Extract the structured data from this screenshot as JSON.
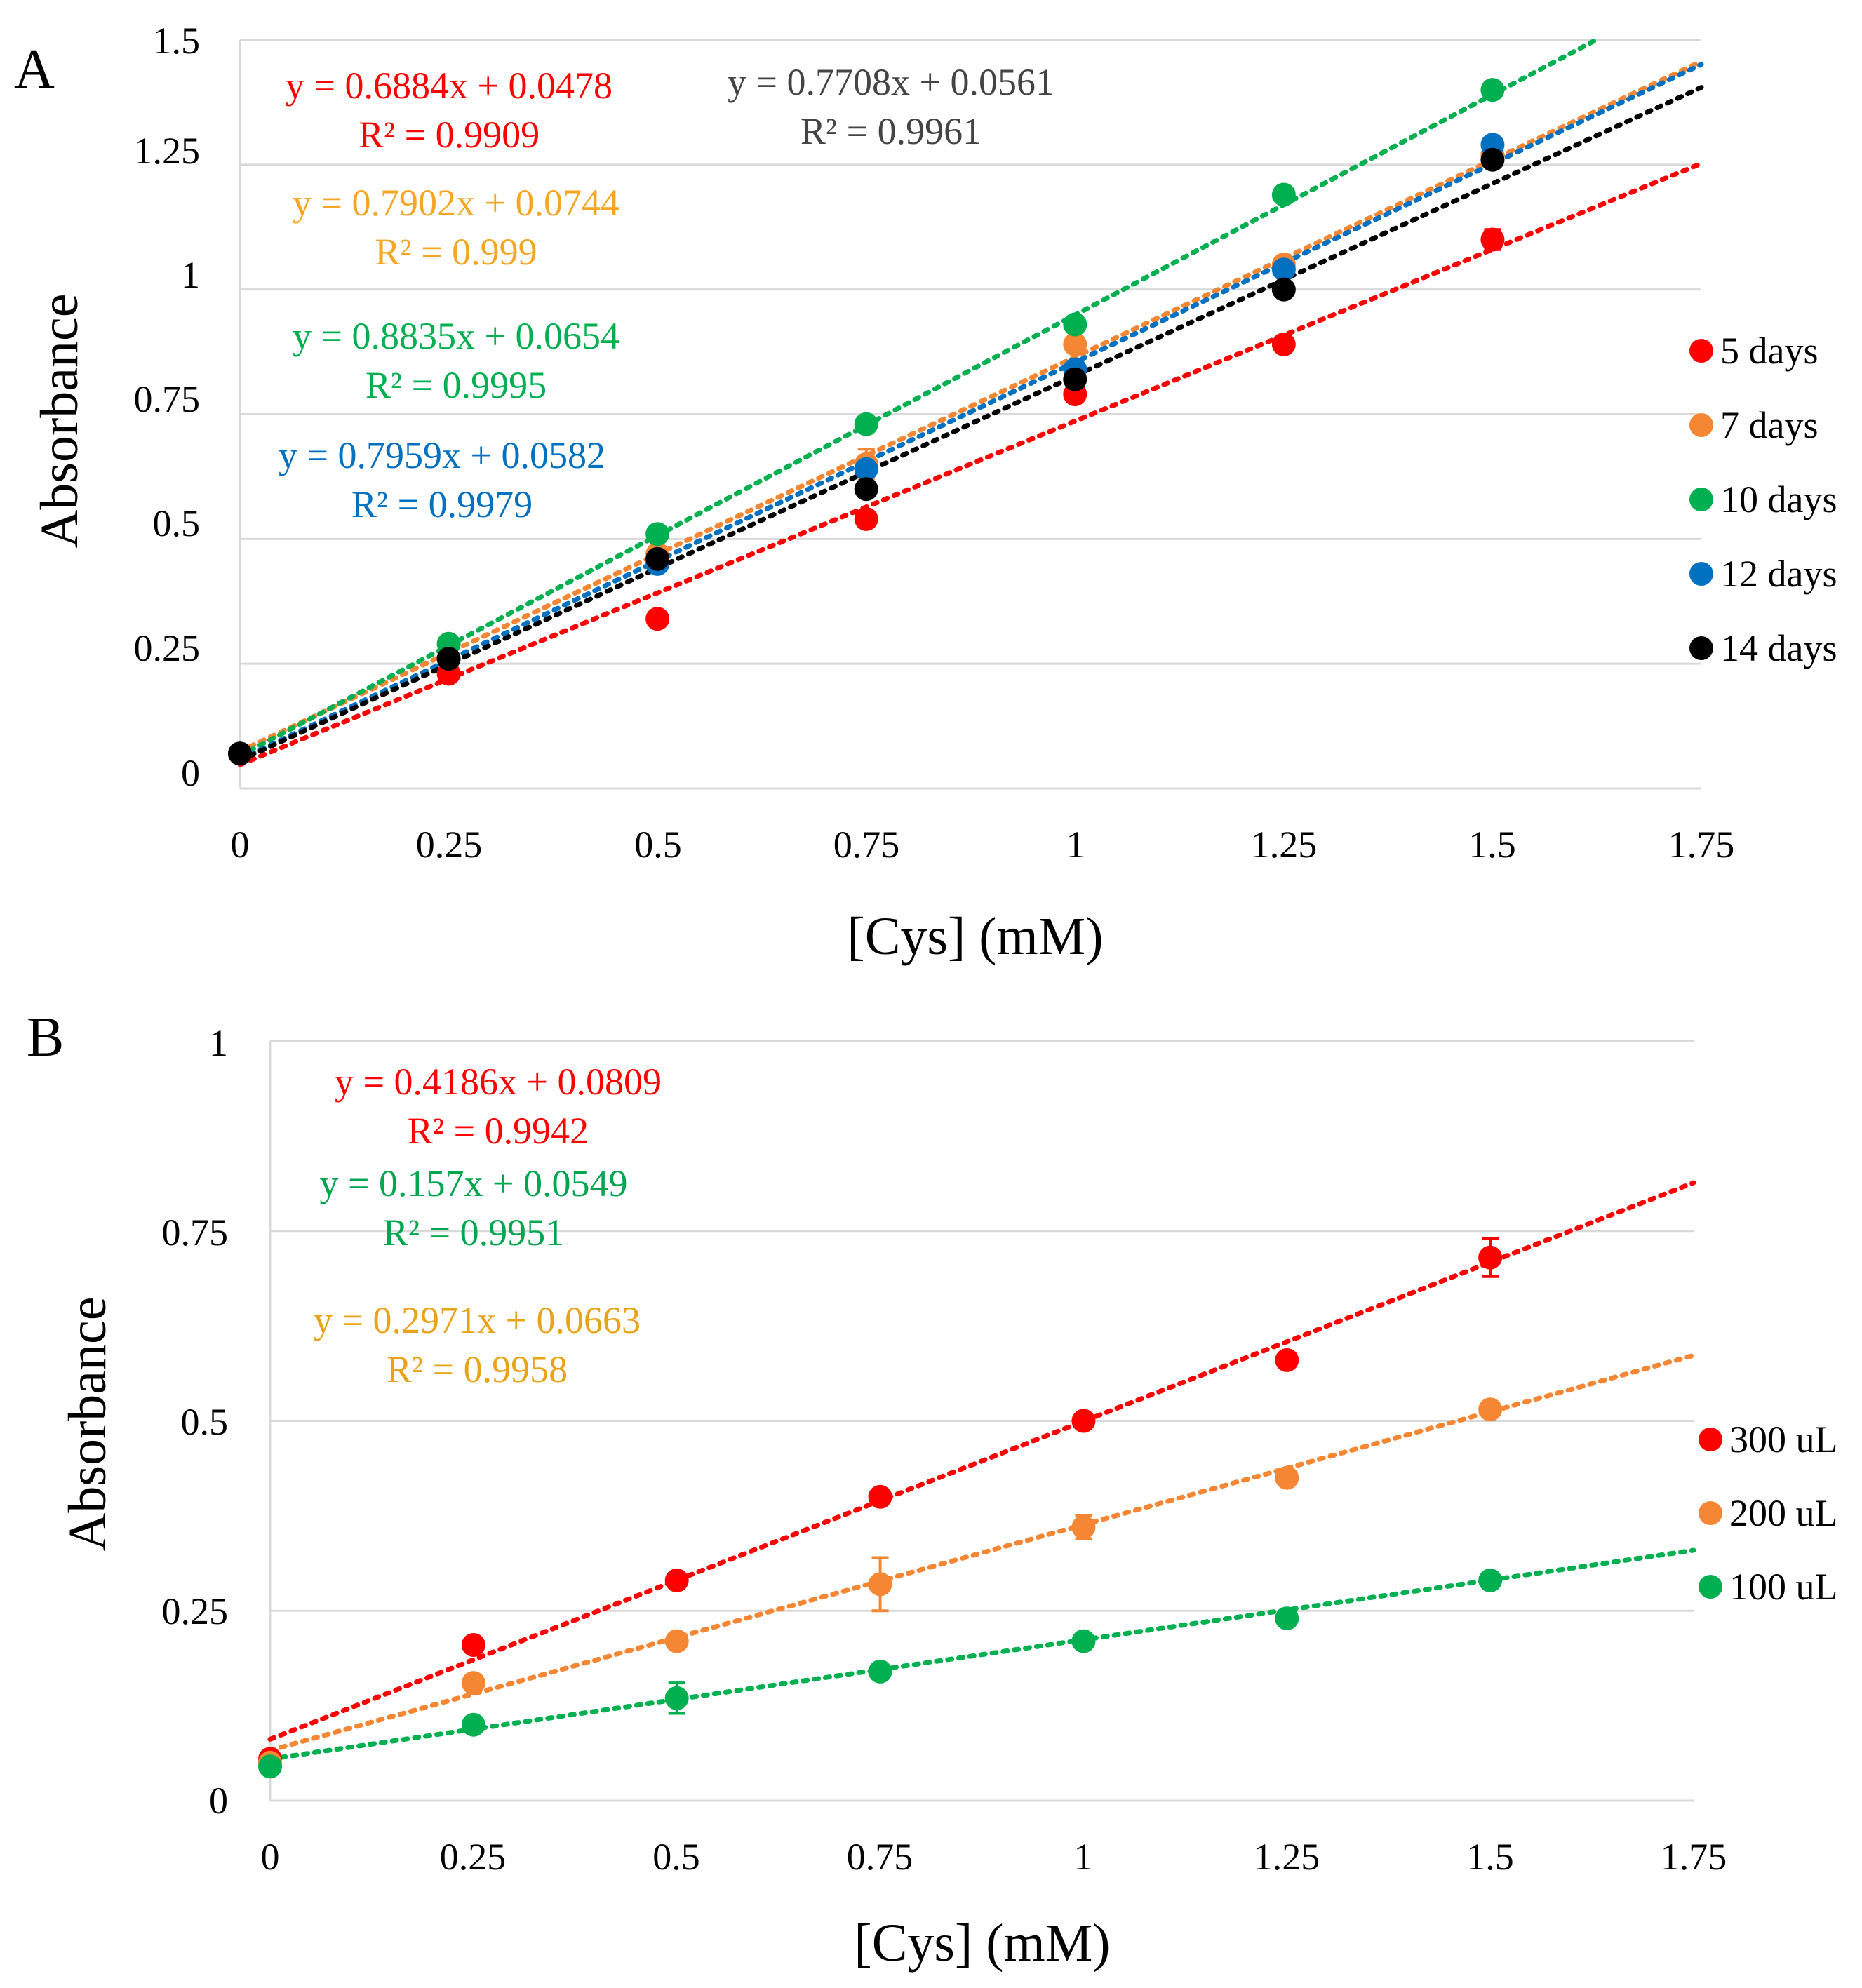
{
  "chart_data": [
    {
      "type": "scatter",
      "panel_label": "A",
      "title": "",
      "xlabel": "[Cys] (mM)",
      "ylabel": "Absorbance",
      "xlim": [
        0,
        1.75
      ],
      "ylim": [
        0,
        1.5
      ],
      "x_ticks": [
        "0",
        "0.25",
        "0.5",
        "0.75",
        "1",
        "1.25",
        "1.5",
        "1.75"
      ],
      "y_ticks": [
        "0",
        "0.25",
        "0.5",
        "0.75",
        "1",
        "1.25",
        "1.5"
      ],
      "grid": true,
      "legend_position": "right",
      "x": [
        0,
        0.25,
        0.5,
        0.75,
        1,
        1.25,
        1.5
      ],
      "series": [
        {
          "name": "5 days",
          "color": "#ff0000",
          "values": [
            0.07,
            0.23,
            0.34,
            0.54,
            0.79,
            0.89,
            1.1
          ],
          "errors": [
            0.005,
            0.005,
            0.005,
            0.01,
            0.005,
            0.005,
            0.02
          ],
          "fit": {
            "slope": 0.6884,
            "intercept": 0.0478,
            "equation": "y = 0.6884x + 0.0478",
            "r2": "R² = 0.9909",
            "label_color": "#ff0000"
          }
        },
        {
          "name": "7 days",
          "color": "#f58634",
          "values": [
            0.07,
            0.26,
            0.47,
            0.65,
            0.89,
            1.05,
            1.27
          ],
          "errors": [
            0.005,
            0.005,
            0.01,
            0.03,
            0.01,
            0.005,
            0.01
          ],
          "fit": {
            "slope": 0.7902,
            "intercept": 0.0744,
            "equation": "y = 0.7902x + 0.0744",
            "r2": "R² = 0.999",
            "label_color": "#f5a623"
          }
        },
        {
          "name": "10 days",
          "color": "#00b050",
          "values": [
            0.07,
            0.29,
            0.51,
            0.73,
            0.93,
            1.19,
            1.4
          ],
          "errors": [
            0.005,
            0.005,
            0.005,
            0.005,
            0.005,
            0.005,
            0.005
          ],
          "fit": {
            "slope": 0.8835,
            "intercept": 0.0654,
            "equation": "y = 0.8835x + 0.0654",
            "r2": "R² = 0.9995",
            "label_color": "#00b050"
          }
        },
        {
          "name": "12 days",
          "color": "#0070c0",
          "values": [
            0.07,
            0.26,
            0.45,
            0.64,
            0.84,
            1.04,
            1.29
          ],
          "errors": [
            0.005,
            0.005,
            0.005,
            0.01,
            0.01,
            0.01,
            0.01
          ],
          "fit": {
            "slope": 0.7959,
            "intercept": 0.0582,
            "equation": "y = 0.7959x + 0.0582",
            "r2": "R² = 0.9979",
            "label_color": "#0070c0"
          }
        },
        {
          "name": "14 days",
          "color": "#000000",
          "values": [
            0.07,
            0.26,
            0.46,
            0.6,
            0.82,
            1.0,
            1.26
          ],
          "errors": [
            0.005,
            0.005,
            0.005,
            0.01,
            0.01,
            0.005,
            0.01
          ],
          "fit": {
            "slope": 0.7708,
            "intercept": 0.0561,
            "equation": "y = 0.7708x + 0.0561",
            "r2": "R² = 0.9961",
            "label_color": "#444444"
          }
        }
      ]
    },
    {
      "type": "scatter",
      "panel_label": "B",
      "title": "",
      "xlabel": "[Cys] (mM)",
      "ylabel": "Absorbance",
      "xlim": [
        0,
        1.75
      ],
      "ylim": [
        0,
        1
      ],
      "x_ticks": [
        "0",
        "0.25",
        "0.5",
        "0.75",
        "1",
        "1.25",
        "1.5",
        "1.75"
      ],
      "y_ticks": [
        "0",
        "0.25",
        "0.5",
        "0.75",
        "1"
      ],
      "grid": true,
      "legend_position": "right",
      "x": [
        0,
        0.25,
        0.5,
        0.75,
        1,
        1.25,
        1.5
      ],
      "series": [
        {
          "name": "300 uL",
          "color": "#ff0000",
          "values": [
            0.055,
            0.205,
            0.29,
            0.4,
            0.5,
            0.58,
            0.715
          ],
          "errors": [
            0.005,
            0.005,
            0.005,
            0.005,
            0.005,
            0.005,
            0.025
          ],
          "fit": {
            "slope": 0.4186,
            "intercept": 0.0809,
            "equation": "y = 0.4186x + 0.0809",
            "r2": "R² = 0.9942",
            "label_color": "#ff0000"
          }
        },
        {
          "name": "200 uL",
          "color": "#f58634",
          "values": [
            0.05,
            0.155,
            0.21,
            0.285,
            0.36,
            0.425,
            0.515
          ],
          "errors": [
            0.005,
            0.005,
            0.005,
            0.035,
            0.015,
            0.005,
            0.005
          ],
          "fit": {
            "slope": 0.2971,
            "intercept": 0.0663,
            "equation": "y = 0.2971x + 0.0663",
            "r2": "R² = 0.9958",
            "label_color": "#e8a317"
          }
        },
        {
          "name": "100 uL",
          "color": "#00b050",
          "values": [
            0.045,
            0.1,
            0.135,
            0.17,
            0.21,
            0.24,
            0.29
          ],
          "errors": [
            0.005,
            0.005,
            0.02,
            0.005,
            0.005,
            0.005,
            0.005
          ],
          "fit": {
            "slope": 0.157,
            "intercept": 0.0549,
            "equation": "y = 0.157x + 0.0549",
            "r2": "R² = 0.9951",
            "label_color": "#00a550"
          }
        }
      ]
    }
  ]
}
